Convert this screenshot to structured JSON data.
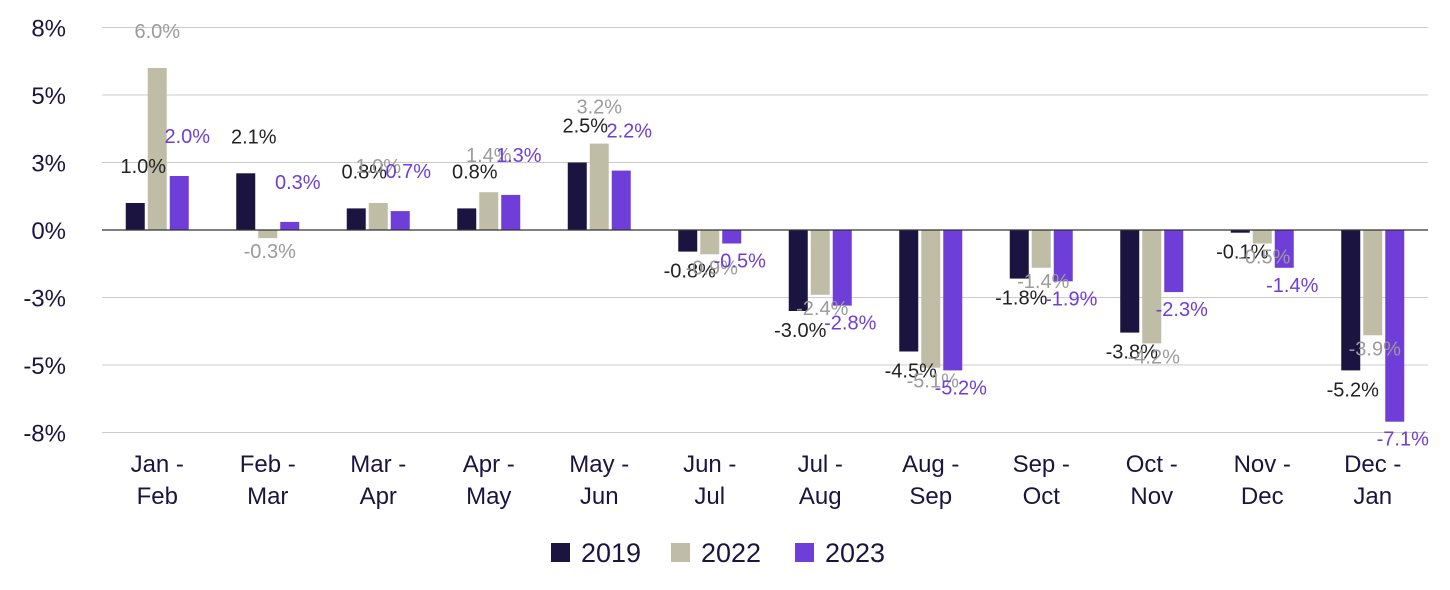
{
  "chart_data": {
    "type": "bar",
    "title": "",
    "xlabel": "",
    "ylabel": "",
    "categories": [
      [
        "Jan -",
        "Feb"
      ],
      [
        "Feb -",
        "Mar"
      ],
      [
        "Mar -",
        "Apr"
      ],
      [
        "Apr -",
        "May"
      ],
      [
        "May -",
        "Jun"
      ],
      [
        "Jun -",
        "Jul"
      ],
      [
        "Jul -",
        "Aug"
      ],
      [
        "Aug -",
        "Sep"
      ],
      [
        "Sep -",
        "Oct"
      ],
      [
        "Oct -",
        "Nov"
      ],
      [
        "Nov -",
        "Dec"
      ],
      [
        "Dec -",
        "Jan"
      ]
    ],
    "ylim": [
      -7.5,
      7.5
    ],
    "yticks": [
      {
        "value": 7.5,
        "label": "8%"
      },
      {
        "value": 5,
        "label": "5%"
      },
      {
        "value": 2.5,
        "label": "3%"
      },
      {
        "value": 0,
        "label": "0%"
      },
      {
        "value": -2.5,
        "label": "-3%"
      },
      {
        "value": -5,
        "label": "-5%"
      },
      {
        "value": -7.5,
        "label": "-8%"
      }
    ],
    "grid": true,
    "legend": "bottom",
    "series": [
      {
        "name": "2019",
        "color": "#1c1440",
        "label_color": "#222222",
        "values": [
          1.0,
          2.1,
          0.8,
          0.8,
          2.5,
          -0.8,
          -3.0,
          -4.5,
          -1.8,
          -3.8,
          -0.1,
          -5.2
        ],
        "labels": [
          "1.0%",
          "2.1%",
          "0.8%",
          "0.8%",
          "2.5%",
          "-0.8%",
          "-3.0%",
          "-4.5%",
          "-1.8%",
          "-3.8%",
          "-0.1%",
          "-5.2%"
        ]
      },
      {
        "name": "2022",
        "color": "#bfbda6",
        "label_color": "#9b9b9b",
        "values": [
          6.0,
          -0.3,
          1.0,
          1.4,
          3.2,
          -0.9,
          -2.4,
          -5.1,
          -1.4,
          -4.2,
          -0.5,
          -3.9
        ],
        "labels": [
          "6.0%",
          "-0.3%",
          "1.0%",
          "1.4%",
          "3.2%",
          "-0.9%",
          "-2.4%",
          "-5.1%",
          "-1.4%",
          "-4.2%",
          "-0.5%",
          "-3.9%"
        ]
      },
      {
        "name": "2023",
        "color": "#6f3ed8",
        "label_color": "#6f3ed8",
        "values": [
          2.0,
          0.3,
          0.7,
          1.3,
          2.2,
          -0.5,
          -2.8,
          -5.2,
          -1.9,
          -2.3,
          -1.4,
          -7.1
        ],
        "labels": [
          "2.0%",
          "0.3%",
          "0.7%",
          "1.3%",
          "2.2%",
          "-0.5%",
          "-2.8%",
          "-5.2%",
          "-1.9%",
          "-2.3%",
          "-1.4%",
          "-7.1%"
        ]
      }
    ]
  }
}
